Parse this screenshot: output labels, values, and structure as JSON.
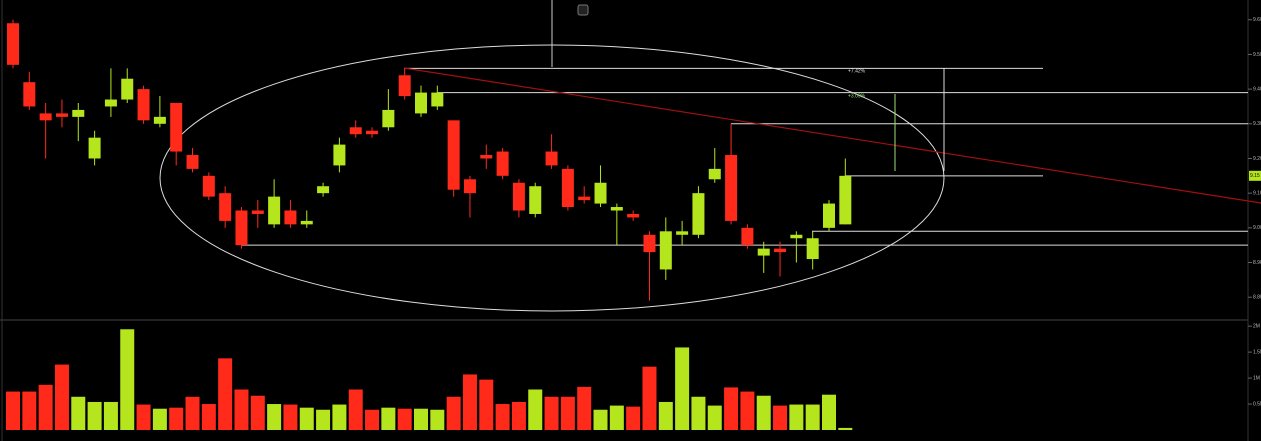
{
  "chart_data": [
    {
      "type": "candlestick",
      "open": [
        9.59,
        9.42,
        9.33,
        9.33,
        9.32,
        9.2,
        9.35,
        9.37,
        9.4,
        9.3,
        9.36,
        9.21,
        9.15,
        9.1,
        9.05,
        9.05,
        9.01,
        9.05,
        9.01,
        9.1,
        9.18,
        9.29,
        9.28,
        9.29,
        9.44,
        9.33,
        9.35,
        9.31,
        9.14,
        9.21,
        9.22,
        9.13,
        9.04,
        9.22,
        9.17,
        9.09,
        9.07,
        9.05,
        9.04,
        8.98,
        8.88,
        8.98,
        8.98,
        9.14,
        9.21,
        9.0,
        8.92,
        8.94,
        8.97,
        8.91,
        9.0,
        9.01
      ],
      "high": [
        9.6,
        9.45,
        9.36,
        9.37,
        9.36,
        9.28,
        9.46,
        9.46,
        9.41,
        9.38,
        9.36,
        9.23,
        9.16,
        9.12,
        9.06,
        9.08,
        9.14,
        9.08,
        9.05,
        9.13,
        9.26,
        9.31,
        9.29,
        9.4,
        9.46,
        9.41,
        9.41,
        9.31,
        9.15,
        9.24,
        9.23,
        9.14,
        9.13,
        9.27,
        9.18,
        9.12,
        9.18,
        9.07,
        9.05,
        8.99,
        9.03,
        9.02,
        9.12,
        9.23,
        9.3,
        9.01,
        8.96,
        8.96,
        8.99,
        8.99,
        9.08,
        9.2
      ],
      "low": [
        9.46,
        9.34,
        9.2,
        9.29,
        9.25,
        9.18,
        9.32,
        9.36,
        9.3,
        9.29,
        9.18,
        9.16,
        9.08,
        9.0,
        8.94,
        9.0,
        9.0,
        9.0,
        9.0,
        9.09,
        9.16,
        9.26,
        9.26,
        9.28,
        9.37,
        9.32,
        9.34,
        9.09,
        9.03,
        9.17,
        9.14,
        9.03,
        9.03,
        9.17,
        9.05,
        9.07,
        9.06,
        8.95,
        9.02,
        8.79,
        8.85,
        8.95,
        8.97,
        9.13,
        9.01,
        8.94,
        8.87,
        8.86,
        8.9,
        8.88,
        8.99,
        9.01
      ],
      "close": [
        9.47,
        9.35,
        9.31,
        9.32,
        9.34,
        9.26,
        9.37,
        9.43,
        9.31,
        9.32,
        9.22,
        9.17,
        9.09,
        9.02,
        8.95,
        9.04,
        9.09,
        9.01,
        9.02,
        9.12,
        9.24,
        9.27,
        9.27,
        9.34,
        9.38,
        9.39,
        9.39,
        9.11,
        9.1,
        9.2,
        9.15,
        9.05,
        9.12,
        9.18,
        9.06,
        9.08,
        9.13,
        9.06,
        9.03,
        8.93,
        8.99,
        8.99,
        9.1,
        9.17,
        9.02,
        8.95,
        8.94,
        8.93,
        8.98,
        8.97,
        9.07,
        9.15
      ],
      "up_color": "#b5e61d",
      "down_color": "#ff2a1a",
      "ylim": [
        8.74,
        9.657
      ],
      "yticks": [
        {
          "value": 9.6,
          "label": "9.60"
        },
        {
          "value": 9.5,
          "label": "9.50"
        },
        {
          "value": 9.4,
          "label": "9.40"
        },
        {
          "value": 9.3,
          "label": "9.30"
        },
        {
          "value": 9.2,
          "label": "9.20"
        },
        {
          "value": 9.1,
          "label": "9.10"
        },
        {
          "value": 9.0,
          "label": "9.00"
        },
        {
          "value": 8.9,
          "label": "8.90"
        },
        {
          "value": 8.8,
          "label": "8.80"
        }
      ],
      "levels": [
        9.46,
        9.39,
        9.3,
        9.15,
        8.99,
        8.95
      ],
      "annotations": [
        "+7.42%",
        "+3.09%"
      ],
      "last_price": {
        "value": 9.15,
        "label": "9.15"
      }
    },
    {
      "type": "volume",
      "values": [
        740000,
        740000,
        870000,
        1260000,
        640000,
        540000,
        540000,
        1940000,
        490000,
        410000,
        430000,
        640000,
        500000,
        1380000,
        780000,
        660000,
        500000,
        490000,
        430000,
        390000,
        490000,
        780000,
        390000,
        430000,
        410000,
        410000,
        390000,
        640000,
        1070000,
        970000,
        500000,
        540000,
        780000,
        640000,
        640000,
        830000,
        390000,
        470000,
        450000,
        1220000,
        540000,
        1590000,
        640000,
        470000,
        820000,
        740000,
        660000,
        470000,
        490000,
        490000,
        680000,
        40000
      ],
      "ylim": [
        0,
        2080000
      ],
      "yticks": [
        {
          "value": 2000000,
          "label": "2M"
        },
        {
          "value": 1500000,
          "label": "1.5M"
        },
        {
          "value": 1000000,
          "label": "1M"
        },
        {
          "value": 500000,
          "label": "0.5M"
        }
      ]
    }
  ]
}
